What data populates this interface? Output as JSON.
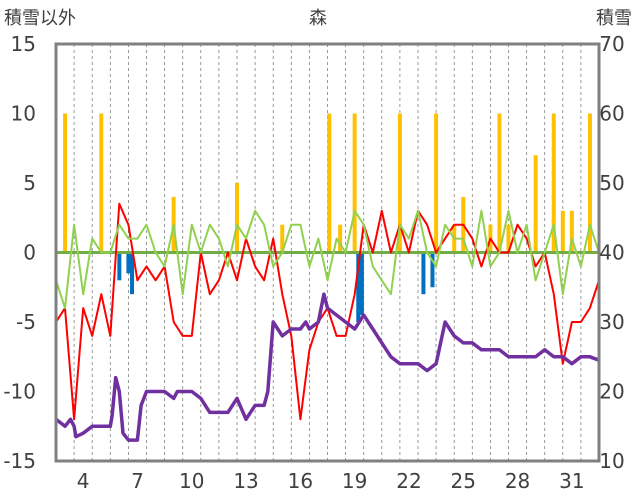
{
  "chart_data": {
    "type": "line",
    "title": "森",
    "ylabel_left": "積雪以外",
    "ylabel_right": "積雪",
    "ylim_left": [
      -15,
      15
    ],
    "yticks_left": [
      15,
      10,
      5,
      0,
      -5,
      -10,
      -15
    ],
    "ylim_right": [
      10,
      70
    ],
    "yticks_right": [
      70,
      60,
      50,
      40,
      30,
      20,
      10
    ],
    "xlim": [
      2.5,
      32.5
    ],
    "xticks": [
      4,
      7,
      10,
      13,
      16,
      19,
      22,
      25,
      28,
      31
    ],
    "grid": "vertical dashed",
    "colors": {
      "series_red": "#ff0000",
      "series_green": "#92d050",
      "series_purple": "#7030a0",
      "bars_orange": "#ffc000",
      "bars_blue": "#0070c0",
      "zero_line": "#70ad47",
      "frame": "#808080"
    },
    "series": [
      {
        "axis": "left",
        "color": "#ff0000",
        "x": [
          2.5,
          3.0,
          3.5,
          4.0,
          4.5,
          5.0,
          5.5,
          6.0,
          6.5,
          7.0,
          7.5,
          8.0,
          8.5,
          9.0,
          9.5,
          10.0,
          10.5,
          11.0,
          11.5,
          12.0,
          12.5,
          13.0,
          13.5,
          14.0,
          14.5,
          15.0,
          15.5,
          16.0,
          16.5,
          17.0,
          17.5,
          18.0,
          18.5,
          19.0,
          19.5,
          20.0,
          20.5,
          21.0,
          21.5,
          22.0,
          22.5,
          23.0,
          23.5,
          24.0,
          24.5,
          25.0,
          25.5,
          26.0,
          26.5,
          27.0,
          27.5,
          28.0,
          28.5,
          29.0,
          29.5,
          30.0,
          30.5,
          31.0,
          31.5,
          32.0,
          32.5
        ],
        "y": [
          -5,
          -4,
          -12,
          -4,
          -6,
          -3,
          -6,
          3.5,
          2,
          -2,
          -1,
          -2,
          -1,
          -5,
          -6,
          -6,
          0,
          -3,
          -2,
          0,
          -2,
          1,
          -1,
          -2,
          1,
          -3,
          -6,
          -12,
          -7,
          -5,
          -4,
          -6,
          -6,
          -3,
          2,
          0,
          3,
          0,
          2,
          0,
          3,
          2,
          0,
          1,
          2,
          2,
          1,
          -1,
          1,
          0,
          0,
          2,
          1,
          -1,
          0,
          -3,
          -8,
          -5,
          -5,
          -4,
          -2
        ]
      },
      {
        "axis": "left",
        "color": "#92d050",
        "x": [
          2.5,
          3.0,
          3.5,
          4.0,
          4.5,
          5.0,
          5.5,
          6.0,
          6.5,
          7.0,
          7.5,
          8.0,
          8.5,
          9.0,
          9.5,
          10.0,
          10.5,
          11.0,
          11.5,
          12.0,
          12.5,
          13.0,
          13.5,
          14.0,
          14.5,
          15.0,
          15.5,
          16.0,
          16.5,
          17.0,
          17.5,
          18.0,
          18.5,
          19.0,
          19.5,
          20.0,
          20.5,
          21.0,
          21.5,
          22.0,
          22.5,
          23.0,
          23.5,
          24.0,
          24.5,
          25.0,
          25.5,
          26.0,
          26.5,
          27.0,
          27.5,
          28.0,
          28.5,
          29.0,
          29.5,
          30.0,
          30.5,
          31.0,
          31.5,
          32.0,
          32.5
        ],
        "y": [
          -2,
          -4,
          2,
          -3,
          1,
          0,
          0,
          2,
          1,
          1,
          2,
          0,
          -1,
          2,
          -3,
          2,
          0,
          2,
          1,
          -1,
          2,
          1,
          3,
          2,
          -1,
          0,
          2,
          2,
          -1,
          1,
          -2,
          1,
          0,
          3,
          2,
          -1,
          -2,
          -3,
          2,
          1,
          3,
          0,
          -1,
          2,
          1,
          1,
          -1,
          3,
          -1,
          0,
          3,
          0,
          2,
          -2,
          0,
          2,
          -3,
          1,
          -1,
          2,
          0
        ]
      },
      {
        "axis": "right",
        "color": "#7030a0",
        "x": [
          2.5,
          3.0,
          3.3,
          3.5,
          3.6,
          4.0,
          4.5,
          5.0,
          5.5,
          5.6,
          5.8,
          6.0,
          6.2,
          6.5,
          7.0,
          7.2,
          7.5,
          8.0,
          8.5,
          9.0,
          9.2,
          9.5,
          10.0,
          10.5,
          11.0,
          11.5,
          12.0,
          12.5,
          13.0,
          13.5,
          14.0,
          14.2,
          14.5,
          15.0,
          15.5,
          16.0,
          16.3,
          16.5,
          17.0,
          17.3,
          17.5,
          18.0,
          18.5,
          19.0,
          19.5,
          20.0,
          20.5,
          21.0,
          21.5,
          22.0,
          22.5,
          23.0,
          23.5,
          24.0,
          24.5,
          25.0,
          25.5,
          26.0,
          26.5,
          27.0,
          27.5,
          28.0,
          28.5,
          29.0,
          29.5,
          30.0,
          30.5,
          31.0,
          31.5,
          32.0,
          32.5
        ],
        "y": [
          16,
          15,
          16,
          15,
          13.5,
          14,
          15,
          15,
          15,
          16.5,
          22,
          20,
          14,
          13,
          13,
          18,
          20,
          20,
          20,
          19,
          20,
          20,
          20,
          19,
          17,
          17,
          17,
          19,
          16,
          18,
          18,
          20,
          30,
          28,
          29,
          29,
          30,
          29,
          30,
          34,
          32,
          31,
          30,
          29,
          31,
          29,
          27,
          25,
          24,
          24,
          24,
          23,
          24,
          30,
          28,
          27,
          27,
          26,
          26,
          26,
          25,
          25,
          25,
          25,
          26,
          25,
          25,
          24,
          25,
          25,
          24.5
        ]
      }
    ],
    "bars": [
      {
        "axis": "left",
        "color": "#ffc000",
        "x": [
          3,
          5,
          9,
          12.5,
          15,
          17.6,
          18.2,
          19,
          21.5,
          23.5,
          24.5,
          25,
          26.5,
          27,
          27.5,
          29,
          30,
          30.5,
          31,
          32
        ],
        "y": [
          10,
          10,
          4,
          5,
          2,
          10,
          2,
          10,
          10,
          10,
          2,
          4,
          2,
          10,
          2,
          7,
          10,
          3,
          3,
          10
        ]
      },
      {
        "axis": "left",
        "color": "#0070c0",
        "x": [
          6,
          6.5,
          6.7,
          19.2,
          19.4,
          22.8,
          23.3
        ],
        "y": [
          -2,
          -1.5,
          -3,
          -5,
          -4.5,
          -3,
          -2.5
        ]
      }
    ]
  }
}
